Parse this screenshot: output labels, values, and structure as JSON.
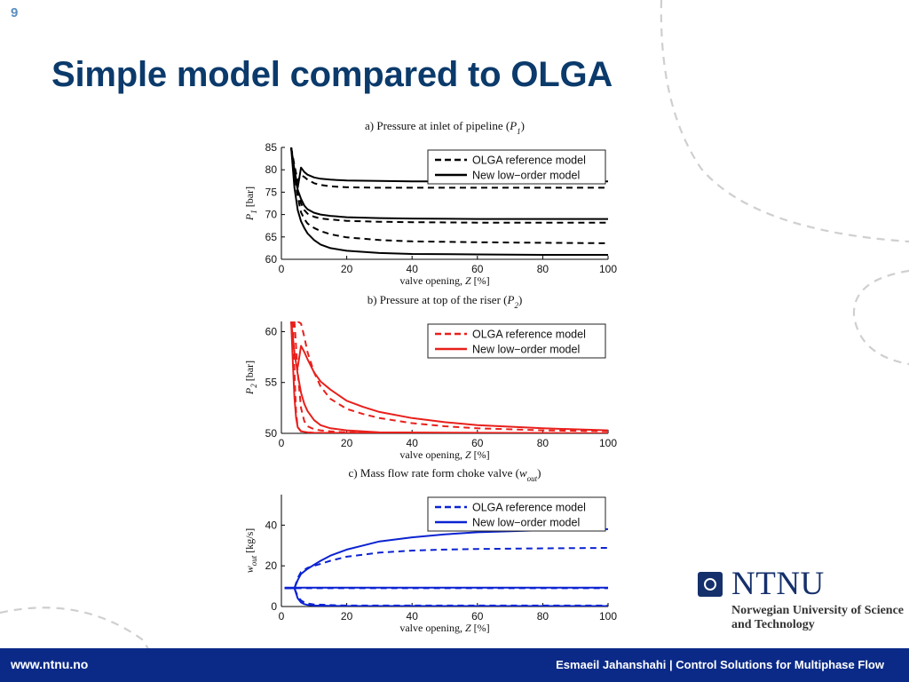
{
  "slide": {
    "number": "9",
    "title": "Simple model compared to OLGA"
  },
  "logo": {
    "name": "NTNU",
    "subtitle": "Norwegian University of Science and Technology"
  },
  "footer": {
    "url": "www.ntnu.no",
    "credit": "Esmaeil Jahanshahi  |  Control Solutions for Multiphase Flow"
  },
  "colors": {
    "title": "#0b3a6b",
    "footer_bg": "#0b2a88",
    "decorative_dash": "#cfcfcf",
    "panel_a": "#000000",
    "panel_b": "#e8201c",
    "panel_c": "#0b23d1"
  },
  "chart_data": [
    {
      "type": "line",
      "title": "a) Pressure at inlet of pipeline (P1)",
      "title_parts": [
        "a) Pressure at inlet of pipeline (",
        "P",
        "1",
        ")"
      ],
      "xlabel": "valve opening, Z [%]",
      "xlabel_parts": [
        "valve opening, ",
        "Z",
        " [%]"
      ],
      "ylabel": "P1 [bar]",
      "ylabel_parts": [
        "P",
        "1",
        " [bar]"
      ],
      "xlim": [
        0,
        100
      ],
      "ylim": [
        60,
        85
      ],
      "xticks": [
        0,
        20,
        40,
        60,
        80,
        100
      ],
      "yticks": [
        60,
        65,
        70,
        75,
        80,
        85
      ],
      "color": "#000000",
      "legend": {
        "position": "top-right",
        "entries": [
          "OLGA reference model",
          "New low−order model"
        ]
      },
      "series": [
        {
          "style": "dashed",
          "x": [
            3,
            4,
            5,
            6,
            7,
            8,
            10,
            12,
            15,
            20,
            30,
            40,
            60,
            80,
            100
          ],
          "y": [
            85,
            81,
            77.5,
            78.8,
            78.4,
            77.8,
            77,
            76.6,
            76.3,
            76.1,
            76,
            76,
            76,
            76,
            76
          ]
        },
        {
          "style": "dashed",
          "x": [
            3,
            4,
            5,
            6,
            7,
            8,
            10,
            12,
            15,
            20,
            30,
            40,
            60,
            80,
            100
          ],
          "y": [
            85,
            80,
            75.5,
            72.5,
            71,
            70.2,
            69.5,
            69.1,
            68.9,
            68.6,
            68.4,
            68.3,
            68.2,
            68.2,
            68.2
          ]
        },
        {
          "style": "dashed",
          "x": [
            3,
            4,
            5,
            6,
            7,
            8,
            10,
            12,
            15,
            20,
            30,
            40,
            60,
            80,
            100
          ],
          "y": [
            85,
            79,
            74,
            70.5,
            69,
            68,
            67,
            66.3,
            65.6,
            64.9,
            64.3,
            64,
            63.8,
            63.7,
            63.6
          ]
        },
        {
          "style": "solid",
          "x": [
            3,
            4,
            5,
            6,
            7,
            8,
            10,
            12,
            15,
            20,
            30,
            40,
            60,
            80,
            100
          ],
          "y": [
            85,
            80,
            76,
            80.5,
            79.5,
            78.9,
            78.3,
            78,
            77.8,
            77.6,
            77.5,
            77.4,
            77.4,
            77.4,
            77.4
          ]
        },
        {
          "style": "solid",
          "x": [
            3,
            4,
            5,
            6,
            7,
            8,
            10,
            12,
            15,
            20,
            30,
            40,
            60,
            80,
            100
          ],
          "y": [
            85,
            79,
            75.5,
            73.5,
            72,
            71.2,
            70.4,
            70,
            69.7,
            69.4,
            69.2,
            69.1,
            69,
            69,
            69
          ]
        },
        {
          "style": "solid",
          "x": [
            3,
            4,
            5,
            6,
            7,
            8,
            10,
            12,
            15,
            20,
            30,
            40,
            60,
            80,
            100
          ],
          "y": [
            85,
            76,
            71,
            68.5,
            67,
            65.8,
            64.3,
            63.3,
            62.5,
            61.9,
            61.4,
            61.2,
            61.1,
            61,
            61
          ]
        }
      ]
    },
    {
      "type": "line",
      "title": "b) Pressure at top of the riser (P2)",
      "title_parts": [
        "b) Pressure at top of the riser (",
        "P",
        "2",
        ")"
      ],
      "xlabel": "valve opening, Z [%]",
      "xlabel_parts": [
        "valve opening, ",
        "Z",
        " [%]"
      ],
      "ylabel": "P2 [bar]",
      "ylabel_parts": [
        "P",
        "2",
        " [bar]"
      ],
      "xlim": [
        0,
        100
      ],
      "ylim": [
        50,
        61
      ],
      "xticks": [
        0,
        20,
        40,
        60,
        80,
        100
      ],
      "yticks": [
        50,
        55,
        60
      ],
      "color": "#e8201c",
      "legend": {
        "position": "top-right",
        "entries": [
          "OLGA reference model",
          "New low−order model"
        ]
      },
      "series": [
        {
          "style": "dashed",
          "x": [
            5,
            6,
            7,
            8,
            10,
            12,
            15,
            20,
            25,
            30,
            40,
            50,
            60,
            80,
            100
          ],
          "y": [
            61,
            60.8,
            59.5,
            58,
            56,
            54.6,
            53.4,
            52.4,
            51.9,
            51.5,
            51,
            50.7,
            50.5,
            50.3,
            50.2
          ]
        },
        {
          "style": "dashed",
          "x": [
            4,
            5,
            6,
            7,
            8,
            10,
            12,
            15,
            20,
            30,
            100
          ],
          "y": [
            61,
            56,
            52.5,
            51.2,
            50.7,
            50.4,
            50.3,
            50.2,
            50.1,
            50.05,
            50
          ]
        },
        {
          "style": "dashed",
          "x": [
            3.5,
            4,
            4.5,
            5,
            6,
            8,
            10,
            100
          ],
          "y": [
            61,
            56,
            52,
            50.6,
            50.2,
            50.1,
            50.05,
            50
          ]
        },
        {
          "style": "solid",
          "x": [
            5,
            6,
            7,
            8,
            10,
            12,
            15,
            20,
            25,
            30,
            40,
            50,
            60,
            80,
            100
          ],
          "y": [
            56.5,
            58.6,
            58,
            57.3,
            56,
            55.1,
            54.3,
            53.2,
            52.6,
            52.1,
            51.5,
            51.1,
            50.8,
            50.5,
            50.3
          ]
        },
        {
          "style": "solid",
          "x": [
            3,
            4,
            5,
            6,
            7,
            8,
            10,
            12,
            15,
            20,
            30,
            100
          ],
          "y": [
            61,
            58,
            55.8,
            54,
            52.9,
            52.2,
            51.3,
            50.8,
            50.5,
            50.3,
            50.1,
            50
          ]
        },
        {
          "style": "solid",
          "x": [
            3,
            3.5,
            4,
            4.5,
            5,
            6,
            8,
            10,
            100
          ],
          "y": [
            61,
            57,
            53.5,
            51.5,
            50.6,
            50.2,
            50.1,
            50.05,
            50
          ]
        }
      ]
    },
    {
      "type": "line",
      "title": "c) Mass flow rate form choke valve (wout)",
      "title_parts": [
        "c) Mass flow rate form choke valve (",
        "w",
        "out",
        ")"
      ],
      "xlabel": "valve opening, Z [%]",
      "xlabel_parts": [
        "valve opening, ",
        "Z",
        " [%]"
      ],
      "ylabel": "wout [kg/s]",
      "ylabel_parts": [
        "w",
        "out",
        " [kg/s]"
      ],
      "xlim": [
        0,
        100
      ],
      "ylim": [
        0,
        55
      ],
      "xticks": [
        0,
        20,
        40,
        60,
        80,
        100
      ],
      "yticks": [
        0,
        20,
        40
      ],
      "color": "#0b23d1",
      "legend": {
        "position": "top-right",
        "entries": [
          "OLGA reference model",
          "New low−order model"
        ]
      },
      "series": [
        {
          "style": "dashed",
          "x": [
            1,
            4,
            5,
            6,
            8,
            10,
            12,
            15,
            20,
            30,
            40,
            50,
            60,
            80,
            100
          ],
          "y": [
            9,
            9,
            14,
            17,
            19,
            20,
            21,
            22.5,
            24.5,
            26.5,
            27.5,
            28,
            28.3,
            28.6,
            28.8
          ]
        },
        {
          "style": "dashed",
          "x": [
            1,
            100
          ],
          "y": [
            9,
            9
          ]
        },
        {
          "style": "dashed",
          "x": [
            1,
            4,
            5,
            6,
            7,
            8,
            10,
            15,
            20,
            100
          ],
          "y": [
            9,
            9,
            5,
            3,
            2,
            1.5,
            1,
            0.7,
            0.5,
            0.5
          ]
        },
        {
          "style": "solid",
          "x": [
            1,
            4,
            5,
            6,
            8,
            10,
            12,
            15,
            20,
            25,
            30,
            40,
            50,
            60,
            80,
            100
          ],
          "y": [
            9,
            9,
            13,
            16,
            18.5,
            20.5,
            22.5,
            25,
            28,
            30,
            32,
            34,
            35.5,
            36.5,
            37.5,
            38
          ]
        },
        {
          "style": "solid",
          "x": [
            1,
            100
          ],
          "y": [
            9.3,
            9.3
          ]
        },
        {
          "style": "solid",
          "x": [
            1,
            4,
            5,
            6,
            7,
            8,
            10,
            15,
            20,
            100
          ],
          "y": [
            9,
            9,
            4,
            2,
            1.2,
            0.8,
            0.5,
            0.3,
            0.2,
            0.2
          ]
        }
      ]
    }
  ]
}
